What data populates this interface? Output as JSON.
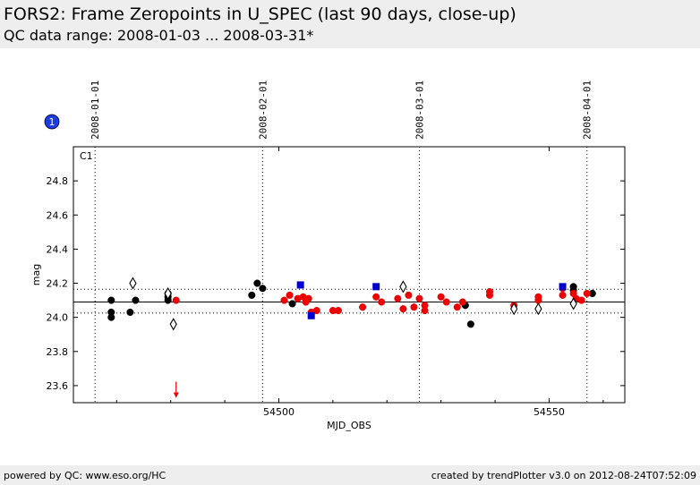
{
  "header": {
    "title": "FORS2: Frame Zeropoints in U_SPEC (last 90 days, close-up)",
    "subtitle": "QC data range: 2008-01-03 ... 2008-03-31*"
  },
  "footer": {
    "left": "powered by QC: www.eso.org/HC",
    "right": "created by trendPlotter v3.0 on 2012-08-24T07:52:09"
  },
  "colors": {
    "black": "#000000",
    "red": "#ee0000",
    "blue": "#0000cc",
    "badge": "#1a3ce0",
    "header_bg": "#eeeeee"
  },
  "chart_data": {
    "type": "scatter",
    "badge": "1",
    "panel_label": "C1",
    "xlabel": "MJD_OBS",
    "ylabel": "mag",
    "xlim": [
      54462,
      54564
    ],
    "ylim": [
      23.5,
      25.0
    ],
    "x_ticks": [
      54500,
      54550
    ],
    "y_ticks": [
      23.6,
      23.8,
      24.0,
      24.2,
      24.4,
      24.6,
      24.8
    ],
    "date_marks": [
      {
        "label": "2008-01-01",
        "mjd": 54466
      },
      {
        "label": "2008-02-01",
        "mjd": 54497
      },
      {
        "label": "2008-03-01",
        "mjd": 54526
      },
      {
        "label": "2008-04-01",
        "mjd": 54557
      }
    ],
    "reference_lines": {
      "mean": 24.09,
      "lower": 24.025,
      "upper": 24.165
    },
    "outlier_arrow": {
      "x": 54481,
      "y": 23.57
    },
    "series": [
      {
        "marker": "dot",
        "color": "black",
        "points": [
          [
            54469,
            24.1
          ],
          [
            54469,
            24.03
          ],
          [
            54469,
            24.0
          ],
          [
            54472.5,
            24.03
          ],
          [
            54473.5,
            24.1
          ],
          [
            54479.5,
            24.1
          ],
          [
            54479.5,
            24.14
          ],
          [
            54479.5,
            24.12
          ],
          [
            54495,
            24.13
          ],
          [
            54496,
            24.2
          ],
          [
            54497,
            24.17
          ],
          [
            54502.5,
            24.08
          ],
          [
            54534.5,
            24.07
          ],
          [
            54535.5,
            23.96
          ],
          [
            54554.5,
            24.18
          ],
          [
            54554.5,
            24.16
          ],
          [
            54558,
            24.14
          ]
        ]
      },
      {
        "marker": "dot",
        "color": "red",
        "points": [
          [
            54481,
            24.1
          ],
          [
            54501,
            24.1
          ],
          [
            54502,
            24.13
          ],
          [
            54503.5,
            24.11
          ],
          [
            54504.5,
            24.12
          ],
          [
            54505,
            24.09
          ],
          [
            54505.5,
            24.11
          ],
          [
            54506,
            24.03
          ],
          [
            54507,
            24.04
          ],
          [
            54510,
            24.04
          ],
          [
            54511,
            24.04
          ],
          [
            54515.5,
            24.06
          ],
          [
            54518,
            24.12
          ],
          [
            54519,
            24.09
          ],
          [
            54522,
            24.11
          ],
          [
            54523,
            24.05
          ],
          [
            54524,
            24.13
          ],
          [
            54525,
            24.06
          ],
          [
            54526,
            24.11
          ],
          [
            54527,
            24.07
          ],
          [
            54527,
            24.04
          ],
          [
            54530,
            24.12
          ],
          [
            54531,
            24.09
          ],
          [
            54533,
            24.06
          ],
          [
            54534,
            24.09
          ],
          [
            54539,
            24.15
          ],
          [
            54539,
            24.13
          ],
          [
            54543.5,
            24.07
          ],
          [
            54548,
            24.12
          ],
          [
            54548,
            24.1
          ],
          [
            54552.5,
            24.13
          ],
          [
            54552.5,
            24.17
          ],
          [
            54554.5,
            24.14
          ],
          [
            54555,
            24.11
          ],
          [
            54556,
            24.1
          ],
          [
            54557,
            24.14
          ]
        ]
      },
      {
        "marker": "square",
        "color": "blue",
        "points": [
          [
            54504,
            24.19
          ],
          [
            54506,
            24.01
          ],
          [
            54518,
            24.18
          ],
          [
            54552.5,
            24.18
          ]
        ]
      },
      {
        "marker": "diamond",
        "color": "black",
        "points": [
          [
            54473,
            24.2
          ],
          [
            54479.5,
            24.14
          ],
          [
            54480.5,
            23.96
          ],
          [
            54523,
            24.18
          ],
          [
            54543.5,
            24.05
          ],
          [
            54548,
            24.05
          ],
          [
            54554.5,
            24.08
          ]
        ]
      }
    ]
  }
}
